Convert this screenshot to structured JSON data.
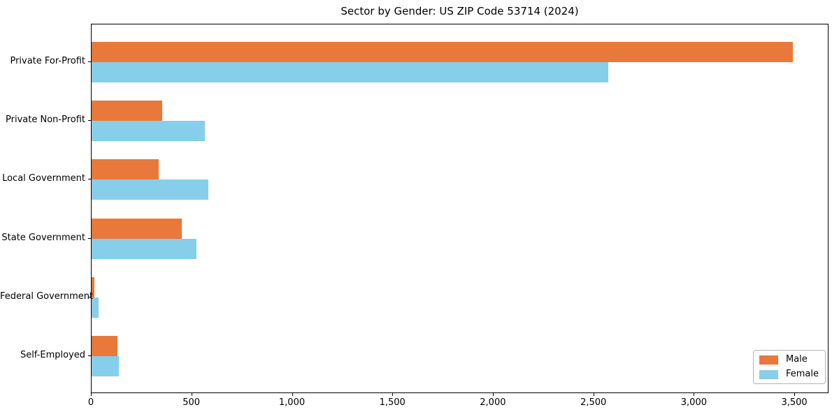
{
  "chart_data": {
    "type": "bar",
    "orientation": "horizontal",
    "title": "Sector by Gender: US ZIP Code 53714 (2024)",
    "categories": [
      "Private For-Profit",
      "Private Non-Profit",
      "Local Government",
      "State Government",
      "Federal Government",
      "Self-Employed"
    ],
    "series": [
      {
        "name": "Male",
        "color": "#e8793a",
        "values": [
          3490,
          350,
          335,
          450,
          15,
          130
        ]
      },
      {
        "name": "Female",
        "color": "#87ceeb",
        "values": [
          2570,
          565,
          580,
          520,
          35,
          135
        ]
      }
    ],
    "xlabel": "",
    "ylabel": "",
    "xlim": [
      0,
      3663
    ],
    "x_ticks": [
      0,
      500,
      1000,
      1500,
      2000,
      2500,
      3000,
      3500
    ],
    "x_tick_labels": [
      "0",
      "500",
      "1,000",
      "1,500",
      "2,000",
      "2,500",
      "3,000",
      "3,500"
    ],
    "grid": false,
    "legend": {
      "position": "lower right"
    },
    "axis_color": "#000000",
    "background_color": "#ffffff"
  }
}
